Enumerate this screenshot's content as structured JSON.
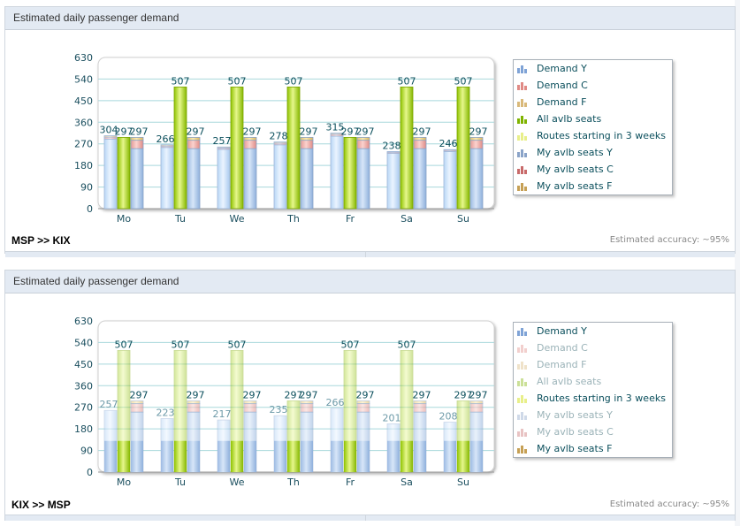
{
  "panels": [
    {
      "header": "Estimated daily passenger demand",
      "route": "MSP >> KIX",
      "accuracy": "Estimated accuracy: ~95%",
      "legend_state": {
        "dimmed": []
      }
    },
    {
      "header": "Estimated daily passenger demand",
      "route": "KIX >> MSP",
      "accuracy": "Estimated accuracy: ~95%",
      "legend_state": {
        "dimmed": [
          "Demand C",
          "Demand F",
          "All avlb seats",
          "My avlb seats Y",
          "My avlb seats C"
        ]
      }
    }
  ],
  "legend": [
    {
      "label": "Demand Y",
      "color": "#7fa3d6"
    },
    {
      "label": "Demand C",
      "color": "#e08a85"
    },
    {
      "label": "Demand F",
      "color": "#d9b97a"
    },
    {
      "label": "All avlb seats",
      "color": "#7fb300"
    },
    {
      "label": "Routes starting in 3 weeks",
      "color": "#e8ef8a"
    },
    {
      "label": "My avlb seats Y",
      "color": "#8aa3c8"
    },
    {
      "label": "My avlb seats C",
      "color": "#c86a6a"
    },
    {
      "label": "My avlb seats F",
      "color": "#c6a055"
    }
  ],
  "chart_data": [
    {
      "type": "bar",
      "title": "Estimated daily passenger demand",
      "subtitle": "MSP >> KIX",
      "categories": [
        "Mo",
        "Tu",
        "We",
        "Th",
        "Fr",
        "Sa",
        "Su"
      ],
      "ylim": [
        0,
        630
      ],
      "yticks": [
        0,
        90,
        180,
        270,
        360,
        450,
        540,
        630
      ],
      "grid": true,
      "legend_position": "right",
      "series": [
        {
          "name": "Demand Y",
          "stack": "demand",
          "values": [
            290,
            255,
            247,
            266,
            302,
            230,
            238
          ]
        },
        {
          "name": "Demand C",
          "stack": "demand",
          "values": [
            8,
            6,
            6,
            7,
            8,
            5,
            5
          ]
        },
        {
          "name": "Demand F",
          "stack": "demand",
          "values": [
            6,
            5,
            4,
            5,
            5,
            3,
            3
          ]
        },
        {
          "name": "All avlb seats",
          "stack": "avlb",
          "values": [
            297,
            507,
            507,
            507,
            297,
            507,
            507
          ]
        },
        {
          "name": "My avlb seats Y",
          "stack": "my",
          "values": [
            250,
            250,
            250,
            250,
            250,
            250,
            250
          ]
        },
        {
          "name": "My avlb seats C",
          "stack": "my",
          "values": [
            35,
            35,
            35,
            35,
            35,
            35,
            35
          ]
        },
        {
          "name": "My avlb seats F",
          "stack": "my",
          "values": [
            12,
            12,
            12,
            12,
            12,
            12,
            12
          ]
        }
      ],
      "data_labels": {
        "demand_total": [
          304,
          266,
          257,
          278,
          315,
          238,
          246
        ],
        "avlb_total": [
          297,
          507,
          507,
          507,
          297,
          507,
          507
        ],
        "my_total": [
          297,
          297,
          297,
          297,
          297,
          297,
          297
        ]
      }
    },
    {
      "type": "bar",
      "title": "Estimated daily passenger demand",
      "subtitle": "KIX >> MSP",
      "categories": [
        "Mo",
        "Tu",
        "We",
        "Th",
        "Fr",
        "Sa",
        "Su"
      ],
      "ylim": [
        0,
        630
      ],
      "yticks": [
        0,
        90,
        180,
        270,
        360,
        450,
        540,
        630
      ],
      "grid": true,
      "legend_position": "right",
      "animating_fill_level": 130,
      "series": [
        {
          "name": "Demand Y",
          "stack": "demand",
          "values": [
            257,
            223,
            217,
            235,
            266,
            201,
            208
          ]
        },
        {
          "name": "All avlb seats",
          "stack": "avlb",
          "values": [
            507,
            507,
            507,
            297,
            507,
            507,
            297
          ]
        },
        {
          "name": "My avlb seats Y",
          "stack": "my",
          "values": [
            250,
            250,
            250,
            250,
            250,
            250,
            250
          ]
        },
        {
          "name": "My avlb seats C",
          "stack": "my",
          "values": [
            35,
            35,
            35,
            35,
            35,
            35,
            35
          ]
        },
        {
          "name": "My avlb seats F",
          "stack": "my",
          "values": [
            12,
            12,
            12,
            12,
            12,
            12,
            12
          ]
        }
      ],
      "data_labels": {
        "demand_total": [
          257,
          223,
          217,
          235,
          266,
          201,
          208
        ],
        "avlb_total": [
          507,
          507,
          507,
          297,
          507,
          507,
          297
        ],
        "my_total": [
          297,
          297,
          297,
          297,
          297,
          297,
          297
        ]
      }
    }
  ]
}
